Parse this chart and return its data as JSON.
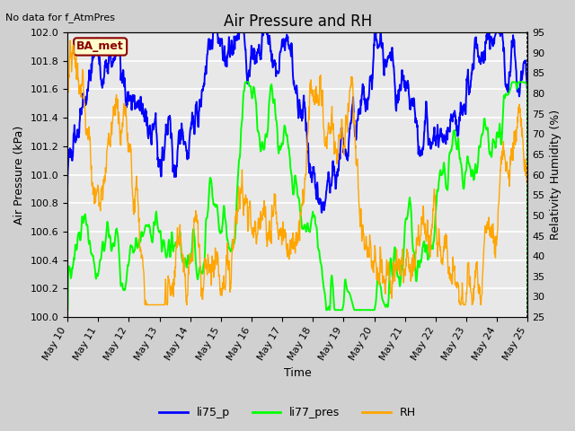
{
  "title": "Air Pressure and RH",
  "top_left_text": "No data for f_AtmPres",
  "box_label": "BA_met",
  "xlabel": "Time",
  "ylabel_left": "Air Pressure (kPa)",
  "ylabel_right": "Relativity Humidity (%)",
  "ylim_left": [
    100.0,
    102.0
  ],
  "ylim_right": [
    25,
    95
  ],
  "yticks_left": [
    100.0,
    100.2,
    100.4,
    100.6,
    100.8,
    101.0,
    101.2,
    101.4,
    101.6,
    101.8,
    102.0
  ],
  "yticks_right": [
    25,
    30,
    35,
    40,
    45,
    50,
    55,
    60,
    65,
    70,
    75,
    80,
    85,
    90,
    95
  ],
  "x_labels": [
    "May 10",
    "May 11",
    "May 12",
    "May 13",
    "May 14",
    "May 15",
    "May 16",
    "May 17",
    "May 18",
    "May 19",
    "May 20",
    "May 21",
    "May 22",
    "May 23",
    "May 24",
    "May 25"
  ],
  "plot_bg_color": "#e8e8e8",
  "fig_bg_color": "#d0d0d0",
  "line_blue": "blue",
  "line_green": "lime",
  "line_orange": "orange",
  "legend_labels": [
    "li75_p",
    "li77_pres",
    "RH"
  ],
  "title_fontsize": 12,
  "label_fontsize": 9,
  "tick_fontsize": 8,
  "box_facecolor": "#ffffcc",
  "box_edgecolor": "#8b0000",
  "box_textcolor": "#8b0000"
}
